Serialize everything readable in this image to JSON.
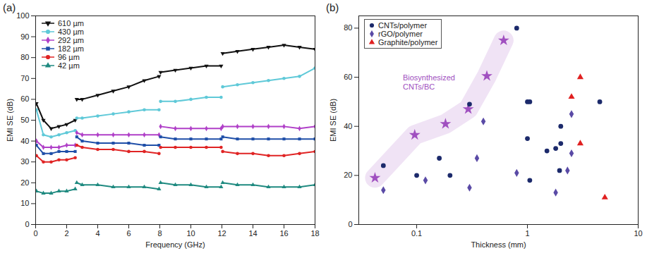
{
  "chart_data": [
    {
      "type": "line",
      "title": "(a)",
      "xlabel": "Frequency (GHz)",
      "ylabel": "EMI SE (dB)",
      "xlim": [
        0,
        18
      ],
      "xticks": [
        0,
        2,
        4,
        6,
        8,
        10,
        12,
        14,
        16,
        18
      ],
      "ylim": [
        0,
        100
      ],
      "yticks": [
        0,
        10,
        20,
        30,
        40,
        50,
        60,
        70,
        80,
        90,
        100
      ],
      "grid": false,
      "legend": "upper left",
      "x": [
        0.05,
        0.5,
        1,
        1.5,
        2,
        2.55,
        2.58,
        2.65,
        3,
        4,
        5,
        6,
        7,
        7.95,
        7.98,
        8.05,
        9,
        10,
        11,
        11.95,
        11.98,
        12.05,
        13,
        14,
        15,
        16,
        17,
        18
      ],
      "series": [
        {
          "name": "610 µm",
          "color": "#111111",
          "marker": "triangle-down",
          "values": [
            58,
            50,
            46,
            47,
            48,
            50,
            null,
            60,
            60,
            62,
            64,
            66,
            69,
            71,
            null,
            73,
            74,
            75,
            76,
            76,
            null,
            82,
            83,
            84,
            85,
            86,
            85,
            84
          ]
        },
        {
          "name": "430 µm",
          "color": "#5fc9d8",
          "marker": "circle",
          "values": [
            55,
            43,
            42,
            43,
            44,
            45,
            null,
            51,
            51,
            52,
            53,
            54,
            55,
            55,
            null,
            59,
            59,
            60,
            61,
            61,
            null,
            66,
            67,
            68,
            69,
            70,
            71,
            75
          ]
        },
        {
          "name": "292 µm",
          "color": "#b040c8",
          "marker": "diamond",
          "values": [
            40,
            37,
            37,
            37,
            38,
            38,
            null,
            44,
            43,
            43,
            43,
            43,
            43,
            43,
            null,
            47,
            46,
            46,
            46,
            46,
            null,
            47,
            47,
            47,
            47,
            47,
            46,
            47
          ]
        },
        {
          "name": "182 µm",
          "color": "#1f4fa8",
          "marker": "square",
          "values": [
            38,
            34,
            34,
            35,
            35,
            35,
            null,
            42,
            40,
            39,
            39,
            39,
            38,
            38,
            null,
            42,
            41,
            41,
            41,
            41,
            null,
            42,
            41,
            41,
            41,
            41,
            41,
            41
          ]
        },
        {
          "name": "96 µm",
          "color": "#e02424",
          "marker": "circle",
          "values": [
            33,
            30,
            30,
            31,
            31,
            32,
            null,
            38,
            37,
            36,
            36,
            35,
            35,
            34,
            null,
            37,
            37,
            37,
            37,
            37,
            null,
            35,
            34,
            34,
            33,
            33,
            34,
            35
          ]
        },
        {
          "name": "42 µm",
          "color": "#1f8a80",
          "marker": "triangle",
          "values": [
            16,
            15,
            15,
            16,
            16,
            17,
            null,
            20,
            19,
            19,
            18,
            18,
            18,
            17,
            null,
            20,
            19,
            19,
            18,
            18,
            null,
            20,
            19,
            19,
            18,
            18,
            18,
            19
          ]
        }
      ]
    },
    {
      "type": "scatter",
      "title": "(b)",
      "xlabel": "Thickness (mm)",
      "ylabel": "EMI SE (dB)",
      "log": "x",
      "xlim": [
        0.03,
        10
      ],
      "xticks": [
        0.1,
        1,
        10
      ],
      "ylim": [
        0,
        85
      ],
      "yticks": [
        0,
        20,
        40,
        60,
        80
      ],
      "grid": false,
      "legend": "upper left",
      "series": [
        {
          "name": "CNTs/polymer",
          "color": "#1c2a6b",
          "marker": "circle",
          "x": [
            0.05,
            0.1,
            0.16,
            0.2,
            0.3,
            0.8,
            1.0,
            1.0,
            1.05,
            1.05,
            1.5,
            1.8,
            2.0,
            2.0,
            1.95,
            4.5
          ],
          "values": [
            24,
            20,
            27,
            20,
            49,
            80,
            35,
            50,
            50,
            18,
            30,
            31,
            40,
            33,
            22,
            50
          ]
        },
        {
          "name": "rGO/polymer",
          "color": "#5a4aa6",
          "marker": "diamond",
          "x": [
            0.05,
            0.12,
            0.3,
            0.35,
            0.4,
            0.8,
            1.8,
            2.3,
            2.5,
            2.5
          ],
          "values": [
            14,
            18,
            15,
            27,
            42,
            21,
            13,
            22,
            29,
            45
          ]
        },
        {
          "name": "Graphite/polymer",
          "color": "#e02020",
          "marker": "triangle",
          "x": [
            2.5,
            3.0,
            3.0,
            5.0
          ],
          "values": [
            52,
            60,
            33,
            11
          ]
        }
      ],
      "highlight": {
        "name": "Biosynthesized\nCNTs/BC",
        "color": "#a050c0",
        "marker": "star",
        "line_style": "band",
        "x": [
          0.042,
          0.096,
          0.182,
          0.292,
          0.43,
          0.61
        ],
        "values": [
          19,
          36.5,
          41,
          47,
          60.5,
          75
        ],
        "label_x": 0.075,
        "label_y": 58
      }
    }
  ]
}
